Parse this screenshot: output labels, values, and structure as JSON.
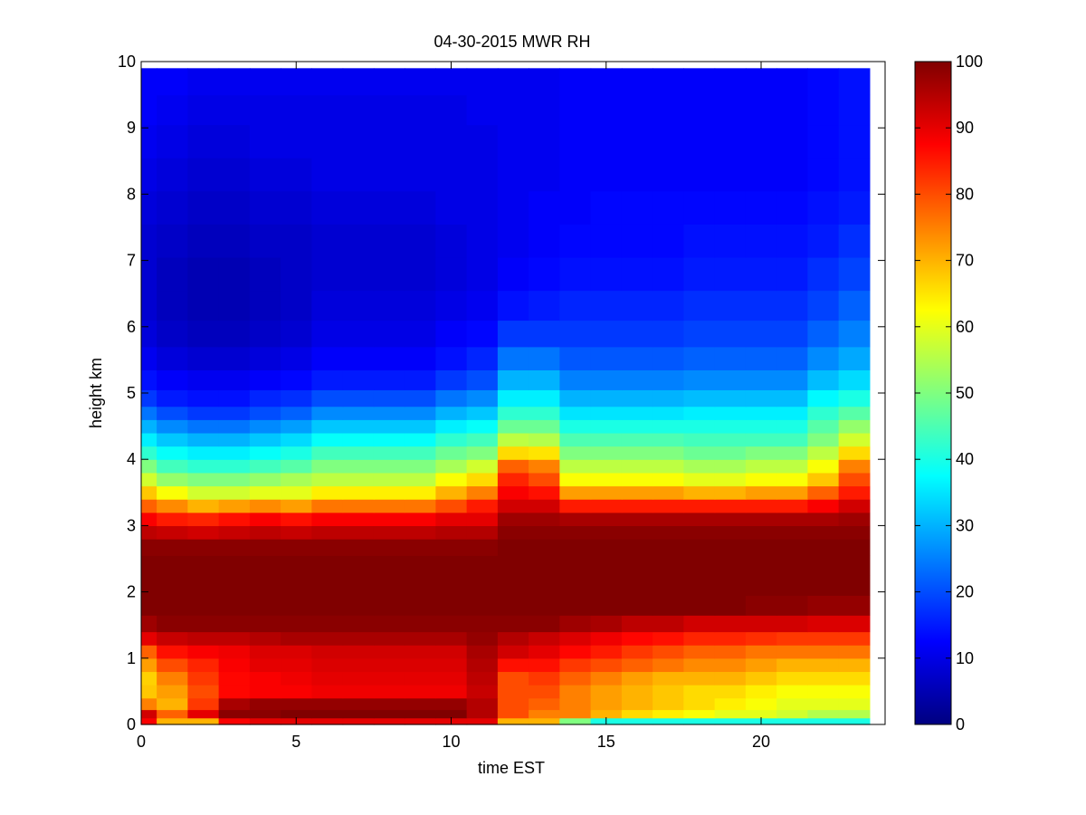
{
  "chart_data": {
    "type": "heatmap",
    "title": "04-30-2015 MWR RH",
    "xlabel": "time EST",
    "ylabel": "height km",
    "xlim": [
      0,
      24
    ],
    "ylim": [
      0,
      10
    ],
    "xticks": [
      0,
      5,
      10,
      15,
      20
    ],
    "yticks": [
      0,
      1,
      2,
      3,
      4,
      5,
      6,
      7,
      8,
      9,
      10
    ],
    "colorbar": {
      "colormap": "jet",
      "range": [
        0,
        100
      ],
      "ticks": [
        0,
        10,
        20,
        30,
        40,
        50,
        60,
        70,
        80,
        90,
        100
      ]
    },
    "times": [
      0,
      1,
      2,
      3,
      4,
      5,
      6,
      7,
      8,
      9,
      10,
      11,
      12,
      13,
      14,
      15,
      16,
      17,
      18,
      19,
      20,
      21,
      22,
      23
    ],
    "heights_km": [
      0.05,
      0.15,
      0.3,
      0.5,
      0.7,
      0.9,
      1.1,
      1.3,
      1.5,
      1.8,
      2.1,
      2.4,
      2.7,
      2.9,
      3.1,
      3.3,
      3.5,
      3.7,
      3.9,
      4.1,
      4.3,
      4.5,
      4.7,
      4.9,
      5.2,
      5.5,
      5.9,
      6.3,
      6.8,
      7.3,
      7.8,
      8.3,
      8.8,
      9.3,
      9.7
    ],
    "rh": [
      [
        88,
        70,
        70,
        88,
        90,
        90,
        90,
        90,
        90,
        90,
        90,
        90,
        70,
        70,
        50,
        40,
        40,
        40,
        40,
        40,
        40,
        40,
        40,
        40
      ],
      [
        92,
        78,
        90,
        99,
        99,
        100,
        100,
        100,
        100,
        100,
        100,
        95,
        80,
        75,
        75,
        70,
        66,
        64,
        62,
        60,
        60,
        58,
        55,
        55
      ],
      [
        75,
        70,
        82,
        96,
        98,
        98,
        98,
        98,
        98,
        98,
        98,
        95,
        80,
        78,
        75,
        72,
        70,
        68,
        66,
        64,
        62,
        60,
        60,
        60
      ],
      [
        68,
        72,
        80,
        87,
        88,
        88,
        89,
        89,
        89,
        89,
        89,
        93,
        80,
        80,
        75,
        72,
        70,
        68,
        66,
        66,
        64,
        62,
        62,
        62
      ],
      [
        67,
        75,
        82,
        87,
        88,
        89,
        90,
        90,
        90,
        90,
        90,
        94,
        80,
        82,
        78,
        75,
        72,
        70,
        70,
        70,
        68,
        66,
        66,
        66
      ],
      [
        72,
        80,
        84,
        88,
        90,
        90,
        91,
        91,
        91,
        91,
        91,
        95,
        86,
        86,
        82,
        80,
        78,
        76,
        74,
        74,
        72,
        70,
        70,
        70
      ],
      [
        78,
        86,
        88,
        89,
        91,
        91,
        92,
        92,
        92,
        92,
        92,
        96,
        92,
        90,
        87,
        85,
        82,
        80,
        78,
        78,
        76,
        76,
        76,
        76
      ],
      [
        90,
        93,
        94,
        94,
        95,
        96,
        96,
        96,
        96,
        96,
        96,
        98,
        95,
        93,
        91,
        89,
        87,
        86,
        84,
        84,
        83,
        82,
        82,
        82
      ],
      [
        97,
        99,
        99,
        99,
        99,
        99,
        99,
        99,
        99,
        99,
        99,
        99,
        99,
        99,
        97,
        96,
        94,
        94,
        92,
        92,
        92,
        92,
        91,
        91
      ],
      [
        100,
        100,
        100,
        100,
        100,
        100,
        100,
        100,
        100,
        100,
        100,
        100,
        100,
        100,
        100,
        100,
        100,
        100,
        100,
        100,
        99,
        99,
        98,
        98
      ],
      [
        100,
        100,
        100,
        100,
        100,
        100,
        100,
        100,
        100,
        100,
        100,
        100,
        100,
        100,
        100,
        100,
        100,
        100,
        100,
        100,
        100,
        100,
        100,
        100
      ],
      [
        100,
        100,
        100,
        100,
        100,
        100,
        100,
        100,
        100,
        100,
        100,
        100,
        100,
        100,
        100,
        100,
        100,
        100,
        100,
        100,
        100,
        100,
        100,
        100
      ],
      [
        99,
        99,
        99,
        99,
        99,
        99,
        99,
        99,
        99,
        99,
        99,
        99,
        100,
        100,
        100,
        100,
        100,
        100,
        100,
        100,
        100,
        100,
        100,
        100
      ],
      [
        94,
        93,
        92,
        93,
        94,
        93,
        94,
        94,
        94,
        94,
        95,
        95,
        99,
        99,
        99,
        99,
        99,
        99,
        99,
        99,
        99,
        99,
        99,
        99
      ],
      [
        88,
        85,
        84,
        86,
        88,
        86,
        88,
        88,
        88,
        88,
        90,
        90,
        97,
        97,
        96,
        96,
        96,
        96,
        96,
        96,
        96,
        96,
        96,
        97
      ],
      [
        78,
        74,
        70,
        72,
        74,
        72,
        76,
        76,
        76,
        76,
        80,
        85,
        92,
        92,
        85,
        85,
        85,
        85,
        85,
        85,
        85,
        85,
        88,
        92
      ],
      [
        68,
        62,
        58,
        58,
        60,
        60,
        64,
        64,
        64,
        64,
        70,
        75,
        88,
        86,
        72,
        72,
        72,
        72,
        70,
        70,
        72,
        72,
        78,
        85
      ],
      [
        58,
        52,
        50,
        50,
        52,
        54,
        56,
        56,
        56,
        56,
        62,
        66,
        84,
        80,
        62,
        62,
        62,
        62,
        60,
        60,
        62,
        62,
        68,
        80
      ],
      [
        50,
        44,
        42,
        42,
        44,
        46,
        50,
        50,
        50,
        50,
        54,
        58,
        78,
        75,
        56,
        56,
        56,
        56,
        54,
        54,
        56,
        56,
        62,
        75
      ],
      [
        42,
        38,
        36,
        36,
        38,
        40,
        44,
        44,
        44,
        44,
        48,
        50,
        66,
        65,
        50,
        50,
        50,
        50,
        48,
        48,
        50,
        50,
        56,
        66
      ],
      [
        36,
        32,
        30,
        30,
        32,
        34,
        38,
        38,
        38,
        38,
        42,
        44,
        56,
        55,
        45,
        45,
        45,
        45,
        44,
        44,
        44,
        44,
        50,
        58
      ],
      [
        30,
        26,
        24,
        24,
        26,
        28,
        32,
        32,
        32,
        32,
        36,
        38,
        48,
        48,
        40,
        40,
        40,
        40,
        40,
        40,
        40,
        40,
        46,
        52
      ],
      [
        24,
        20,
        18,
        18,
        20,
        22,
        26,
        26,
        26,
        26,
        30,
        32,
        42,
        42,
        35,
        35,
        35,
        35,
        36,
        36,
        36,
        36,
        42,
        46
      ],
      [
        18,
        15,
        14,
        14,
        16,
        17,
        20,
        20,
        20,
        20,
        24,
        26,
        36,
        36,
        30,
        30,
        30,
        30,
        31,
        31,
        31,
        31,
        37,
        40
      ],
      [
        14,
        12,
        11,
        11,
        12,
        13,
        15,
        15,
        15,
        15,
        18,
        20,
        30,
        30,
        25,
        25,
        25,
        25,
        26,
        26,
        26,
        26,
        31,
        34
      ],
      [
        11,
        9,
        8,
        8,
        9,
        10,
        12,
        12,
        12,
        12,
        14,
        16,
        24,
        24,
        21,
        21,
        21,
        21,
        22,
        22,
        22,
        22,
        26,
        29
      ],
      [
        9,
        7,
        6,
        6,
        7,
        8,
        10,
        10,
        10,
        10,
        12,
        13,
        18,
        18,
        18,
        18,
        18,
        18,
        19,
        19,
        19,
        19,
        22,
        25
      ],
      [
        8,
        6,
        5,
        5,
        6,
        7,
        9,
        9,
        9,
        9,
        10,
        11,
        14,
        15,
        16,
        16,
        16,
        16,
        17,
        17,
        17,
        17,
        19,
        22
      ],
      [
        8,
        6,
        5,
        5,
        6,
        7,
        8,
        8,
        8,
        8,
        9,
        10,
        12,
        13,
        14,
        14,
        14,
        14,
        15,
        15,
        15,
        15,
        17,
        19
      ],
      [
        8,
        7,
        6,
        6,
        7,
        7,
        8,
        8,
        8,
        8,
        9,
        10,
        11,
        12,
        13,
        13,
        13,
        13,
        14,
        14,
        14,
        14,
        15,
        17
      ],
      [
        9,
        8,
        7,
        7,
        8,
        8,
        9,
        9,
        9,
        9,
        10,
        10,
        11,
        12,
        12,
        13,
        13,
        13,
        13,
        13,
        13,
        13,
        14,
        15
      ],
      [
        10,
        9,
        8,
        8,
        9,
        9,
        10,
        10,
        10,
        10,
        10,
        10,
        11,
        11,
        12,
        12,
        12,
        12,
        12,
        12,
        12,
        12,
        13,
        14
      ],
      [
        11,
        10,
        9,
        9,
        10,
        10,
        10,
        10,
        10,
        10,
        10,
        10,
        11,
        11,
        12,
        12,
        12,
        12,
        12,
        12,
        12,
        12,
        13,
        14
      ],
      [
        12,
        11,
        10,
        10,
        10,
        10,
        10,
        10,
        10,
        10,
        10,
        11,
        11,
        11,
        12,
        12,
        12,
        12,
        12,
        12,
        12,
        12,
        13,
        14
      ],
      [
        12,
        12,
        11,
        11,
        11,
        11,
        11,
        11,
        11,
        11,
        11,
        11,
        11,
        11,
        12,
        12,
        12,
        12,
        12,
        12,
        12,
        12,
        13,
        14
      ]
    ]
  }
}
